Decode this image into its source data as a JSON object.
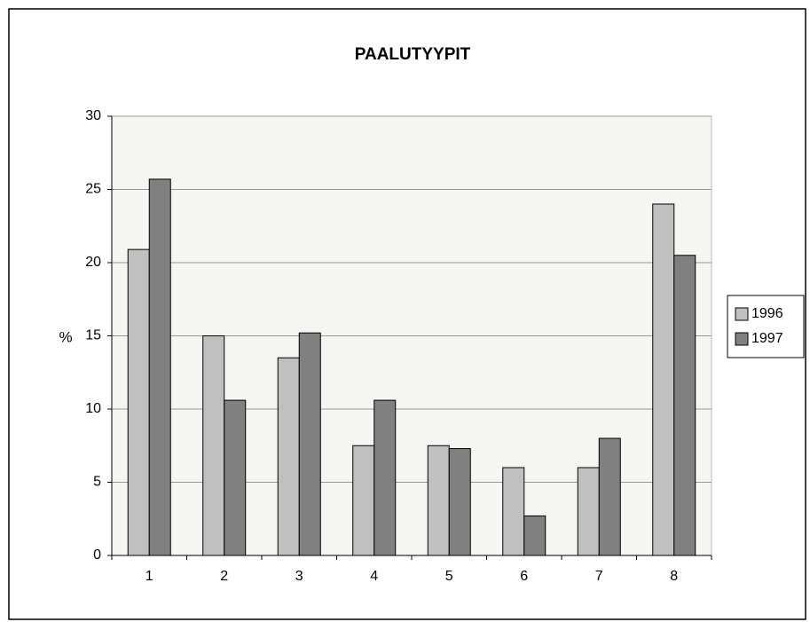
{
  "chart_data": {
    "type": "bar",
    "title": "PAALUTYYPIT",
    "y_label": "%",
    "categories": [
      "1",
      "2",
      "3",
      "4",
      "5",
      "6",
      "7",
      "8"
    ],
    "series": [
      {
        "name": "1996",
        "color": "#c0c0c0",
        "values": [
          20.9,
          15.0,
          13.5,
          7.5,
          7.5,
          6.0,
          6.0,
          24.0
        ]
      },
      {
        "name": "1997",
        "color": "#808080",
        "values": [
          25.7,
          10.6,
          15.2,
          10.6,
          7.3,
          2.7,
          8.0,
          20.5
        ]
      }
    ],
    "ylim": [
      0,
      30
    ],
    "yticks": [
      0,
      5,
      10,
      15,
      20,
      25,
      30
    ],
    "grid": true,
    "legend": "right"
  }
}
